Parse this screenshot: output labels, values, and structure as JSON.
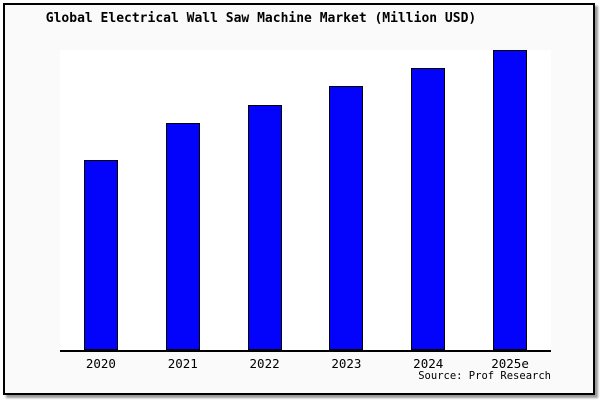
{
  "title": "Global Electrical Wall Saw Machine Market (Million USD)",
  "source": "Source: Prof Research",
  "colors": {
    "bar_fill": "#0303fb",
    "bar_border": "#000000",
    "figure_background": "#fafafa",
    "plot_background": "#ffffff",
    "axis": "#000000",
    "border": "#000000",
    "shadow": "#999999",
    "text": "#000000"
  },
  "chart_data": {
    "type": "bar",
    "title": "Global Electrical Wall Saw Machine Market (Million USD)",
    "categories": [
      "2020",
      "2021",
      "2022",
      "2023",
      "2024",
      "2025e"
    ],
    "values": [
      63.2,
      75.5,
      81.7,
      87.9,
      93.9,
      100
    ],
    "xlabel": "",
    "ylabel": "",
    "ylim": [
      0,
      100
    ],
    "y_axis_labeled": false,
    "grid": false,
    "legend": false,
    "annotation": "Source: Prof Research"
  }
}
